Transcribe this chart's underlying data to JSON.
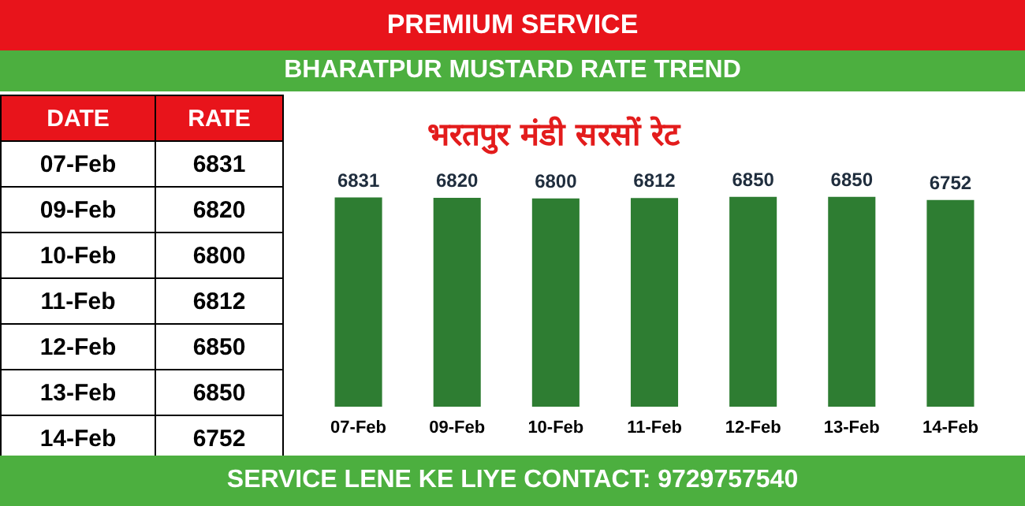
{
  "chart_data": [
    {
      "type": "other",
      "annotations": [
        "DATE",
        "RATE",
        "07-Feb",
        "6831",
        "09-Feb",
        "6820",
        "10-Feb",
        "6800",
        "11-Feb",
        "6812",
        "12-Feb",
        "6850",
        "13-Feb",
        "6850",
        "14-Feb",
        "6752"
      ]
    },
    {
      "type": "bar",
      "title": "BHARATPUR MUSTARD RATE TREND",
      "subtitle": "भरतपुर मंडी सरसों रेट",
      "annotations": [
        "PREMIUM SERVICE",
        "SERVICE LENE KE LIYE CONTACT: 9729757540"
      ],
      "categories": [
        "07-Feb",
        "09-Feb",
        "10-Feb",
        "11-Feb",
        "12-Feb",
        "13-Feb",
        "14-Feb"
      ],
      "values": [
        6831,
        6820,
        6800,
        6812,
        6850,
        6850,
        6752
      ],
      "color": "#2e7d32",
      "data_labels": true
    }
  ]
}
